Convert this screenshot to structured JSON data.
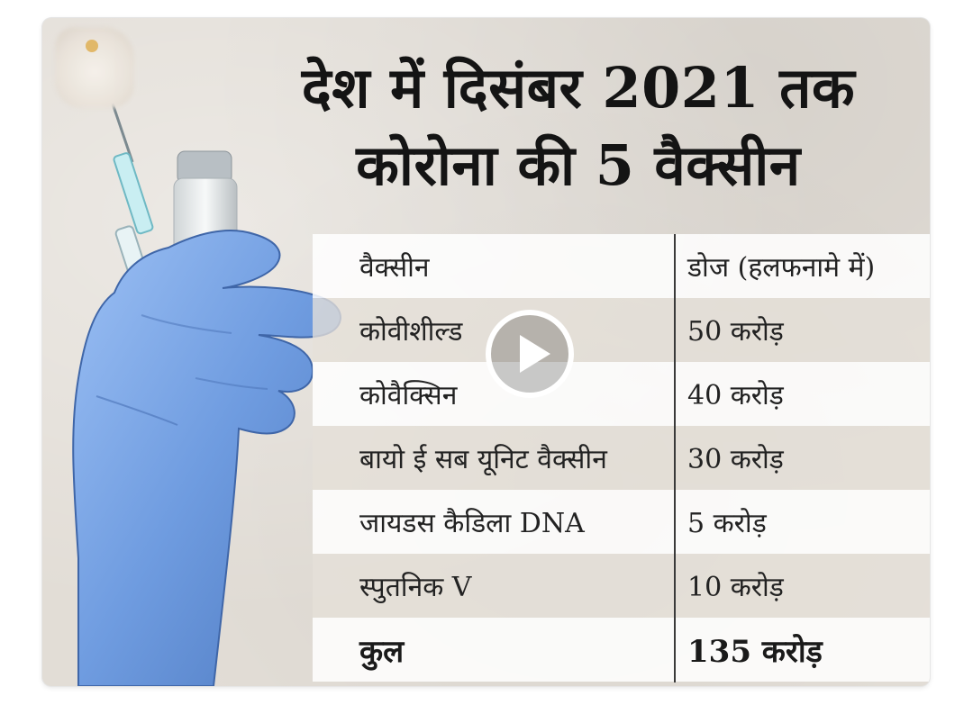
{
  "card": {
    "title_line1": "देश में दिसंबर 2021 तक",
    "title_line2": "कोरोना की 5 वैक्सीन"
  },
  "table": {
    "header": {
      "col1": "वैक्सीन",
      "col2": "डोज (हलफनामे में)"
    },
    "rows": [
      {
        "name": "कोवीशील्ड",
        "doses": "50 करोड़"
      },
      {
        "name": "कोवैक्सिन",
        "doses": "40 करोड़"
      },
      {
        "name": "बायो ई सब यूनिट वैक्सीन",
        "doses": "30 करोड़"
      },
      {
        "name": "जायडस कैडिला DNA",
        "doses": "5 करोड़"
      },
      {
        "name": "स्पुतनिक V",
        "doses": "10 करोड़"
      }
    ],
    "total": {
      "label": "कुल",
      "doses": "135 करोड़"
    }
  },
  "icons": [
    "play-icon",
    "logo-icon",
    "glove-hand-icon",
    "syringe-icon",
    "vaccine-vial-icon"
  ],
  "colors": {
    "background": "#e2ddd6",
    "glove": "#6f9ce0",
    "text": "#141414"
  }
}
